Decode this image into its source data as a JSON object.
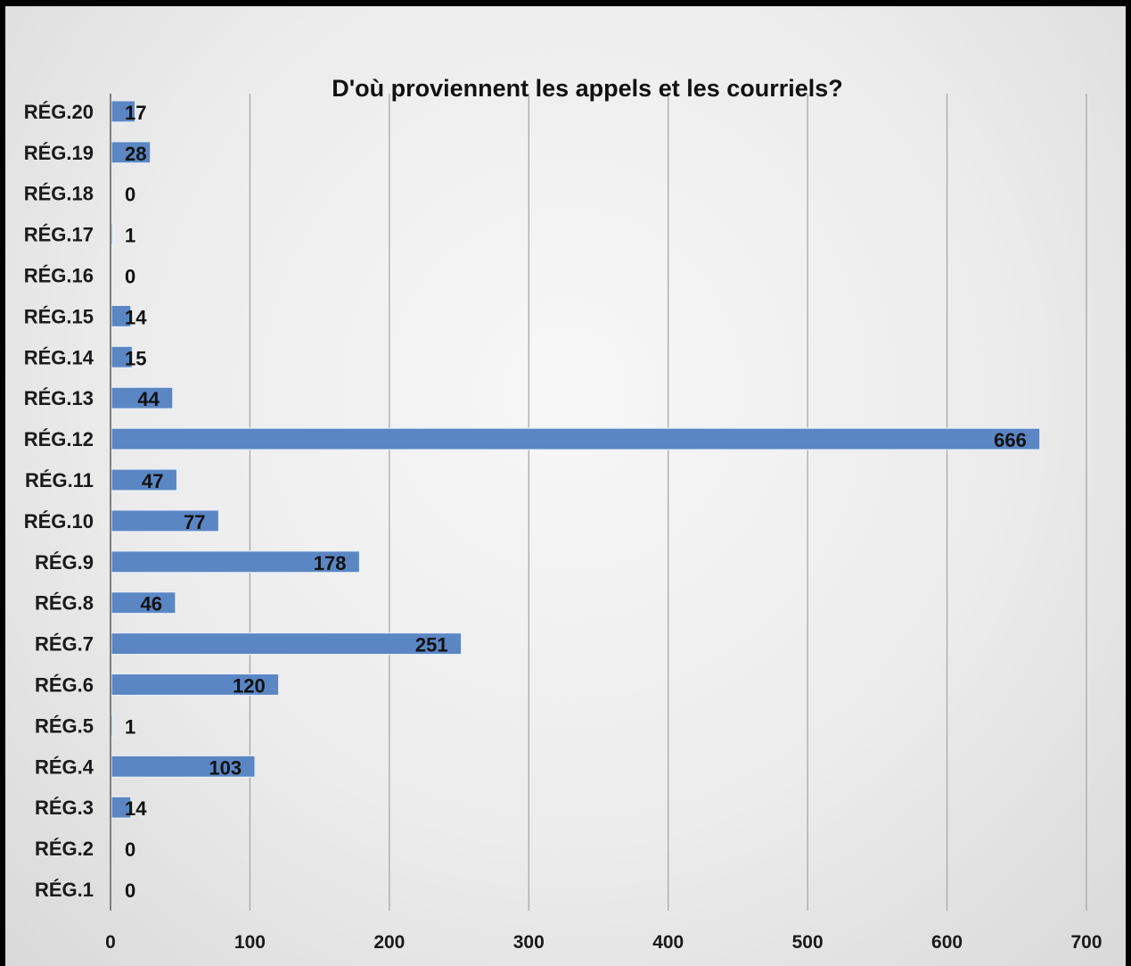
{
  "chart_data": {
    "type": "bar",
    "orientation": "horizontal",
    "title": "D'où proviennent les appels et les courriels?",
    "xlabel": "",
    "ylabel": "",
    "xlim": [
      0,
      700
    ],
    "ticks": [
      0,
      100,
      200,
      300,
      400,
      500,
      600,
      700
    ],
    "grid": true,
    "legend": "none",
    "bar_color": "#5b86c4",
    "bar_edge_color": "#e8eef8",
    "categories": [
      "RÉG.1",
      "RÉG.2",
      "RÉG.3",
      "RÉG.4",
      "RÉG.5",
      "RÉG.6",
      "RÉG.7",
      "RÉG.8",
      "RÉG.9",
      "RÉG.10",
      "RÉG.11",
      "RÉG.12",
      "RÉG.13",
      "RÉG.14",
      "RÉG.15",
      "RÉG.16",
      "RÉG.17",
      "RÉG.18",
      "RÉG.19",
      "RÉG.20"
    ],
    "values": [
      0,
      0,
      14,
      103,
      1,
      120,
      251,
      46,
      178,
      77,
      47,
      666,
      44,
      15,
      14,
      0,
      1,
      0,
      28,
      17
    ]
  }
}
